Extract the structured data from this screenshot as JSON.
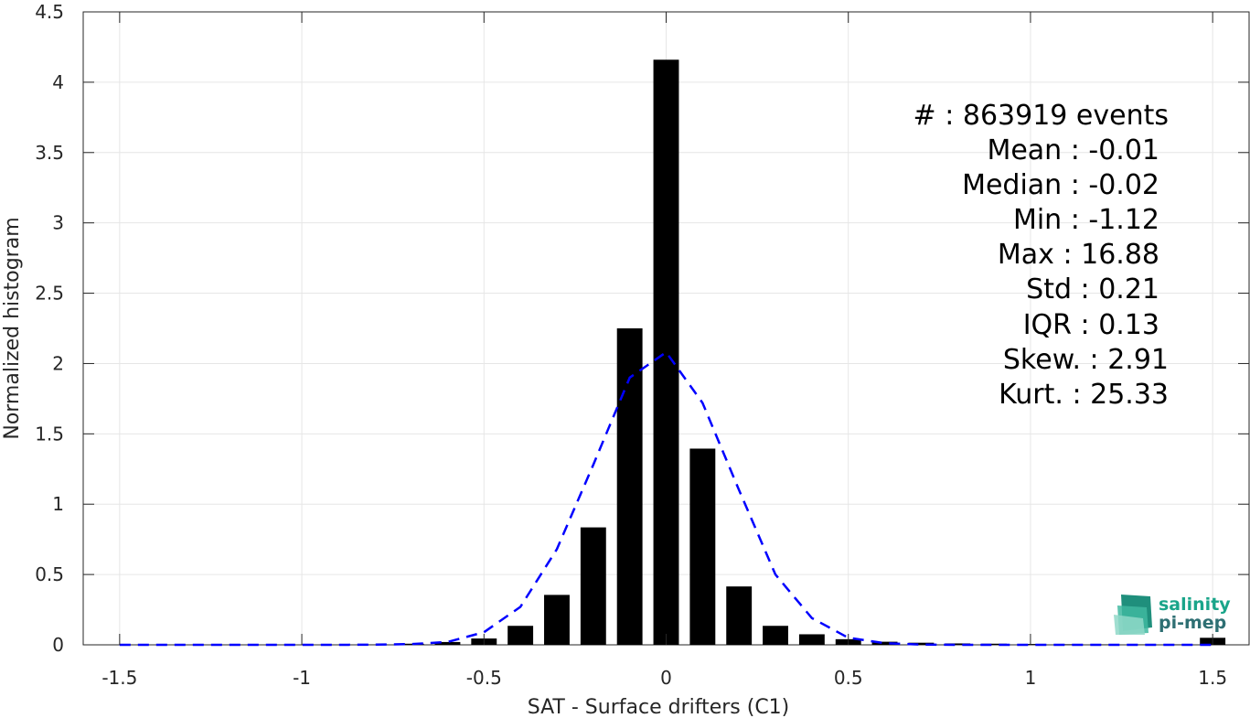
{
  "chart_data": {
    "type": "bar",
    "title": "",
    "xlabel": "SAT - Surface drifters (C1)",
    "ylabel": "Normalized histogram",
    "xlim": [
      -1.6,
      1.6
    ],
    "ylim": [
      0,
      4.5
    ],
    "xticks": [
      -1.5,
      -1,
      -0.5,
      0,
      0.5,
      1,
      1.5
    ],
    "xtick_labels": [
      "-1.5",
      "-1",
      "-0.5",
      "0",
      "0.5",
      "1",
      "1.5"
    ],
    "yticks": [
      0,
      0.5,
      1,
      1.5,
      2,
      2.5,
      3,
      3.5,
      4,
      4.5
    ],
    "ytick_labels": [
      "0",
      "0.5",
      "1",
      "1.5",
      "2",
      "2.5",
      "3",
      "3.5",
      "4",
      "4.5"
    ],
    "grid": true,
    "bar_width": 0.07,
    "bar_color": "#000000",
    "bars": {
      "x": [
        -1.5,
        -1.4,
        -1.3,
        -1.2,
        -1.1,
        -1.0,
        -0.9,
        -0.8,
        -0.7,
        -0.6,
        -0.5,
        -0.4,
        -0.3,
        -0.2,
        -0.1,
        0.0,
        0.1,
        0.2,
        0.3,
        0.4,
        0.5,
        0.6,
        0.7,
        0.8,
        0.9,
        1.0,
        1.1,
        1.2,
        1.3,
        1.4,
        1.5
      ],
      "y": [
        0,
        0,
        0,
        0,
        0,
        0,
        0,
        0.002,
        0.008,
        0.02,
        0.045,
        0.135,
        0.355,
        0.835,
        2.25,
        4.16,
        1.395,
        0.415,
        0.135,
        0.075,
        0.04,
        0.022,
        0.015,
        0.01,
        0.008,
        0.006,
        0.004,
        0.003,
        0.003,
        0.003,
        0.05
      ]
    },
    "fit_curve": {
      "name": "",
      "style": "dashed",
      "color": "#0000ff",
      "x": [
        -1.5,
        -1.4,
        -1.3,
        -1.2,
        -1.1,
        -1.0,
        -0.9,
        -0.8,
        -0.7,
        -0.6,
        -0.5,
        -0.4,
        -0.3,
        -0.2,
        -0.1,
        0.0,
        0.1,
        0.2,
        0.3,
        0.4,
        0.5,
        0.6,
        0.7,
        0.8,
        0.9,
        1.0,
        1.1,
        1.2,
        1.3,
        1.4,
        1.5
      ],
      "y": [
        0,
        0,
        0,
        0,
        0,
        0,
        0,
        0.001,
        0.005,
        0.02,
        0.09,
        0.27,
        0.68,
        1.28,
        1.9,
        2.08,
        1.72,
        1.1,
        0.5,
        0.19,
        0.05,
        0.012,
        0.002,
        0,
        0,
        0,
        0,
        0,
        0,
        0,
        0
      ]
    },
    "stats": [
      "#  : 863919 events",
      "Mean : -0.01",
      "Median : -0.02",
      "Min : -1.12",
      "Max : 16.88",
      "Std : 0.21",
      "IQR : 0.13",
      "Skew. : 2.91",
      "Kurt. : 25.33"
    ]
  },
  "logo": {
    "line1": "salinity",
    "line2": "pi-mep",
    "line1_color": "#1aa58a",
    "line2_color": "#2e6f73"
  }
}
